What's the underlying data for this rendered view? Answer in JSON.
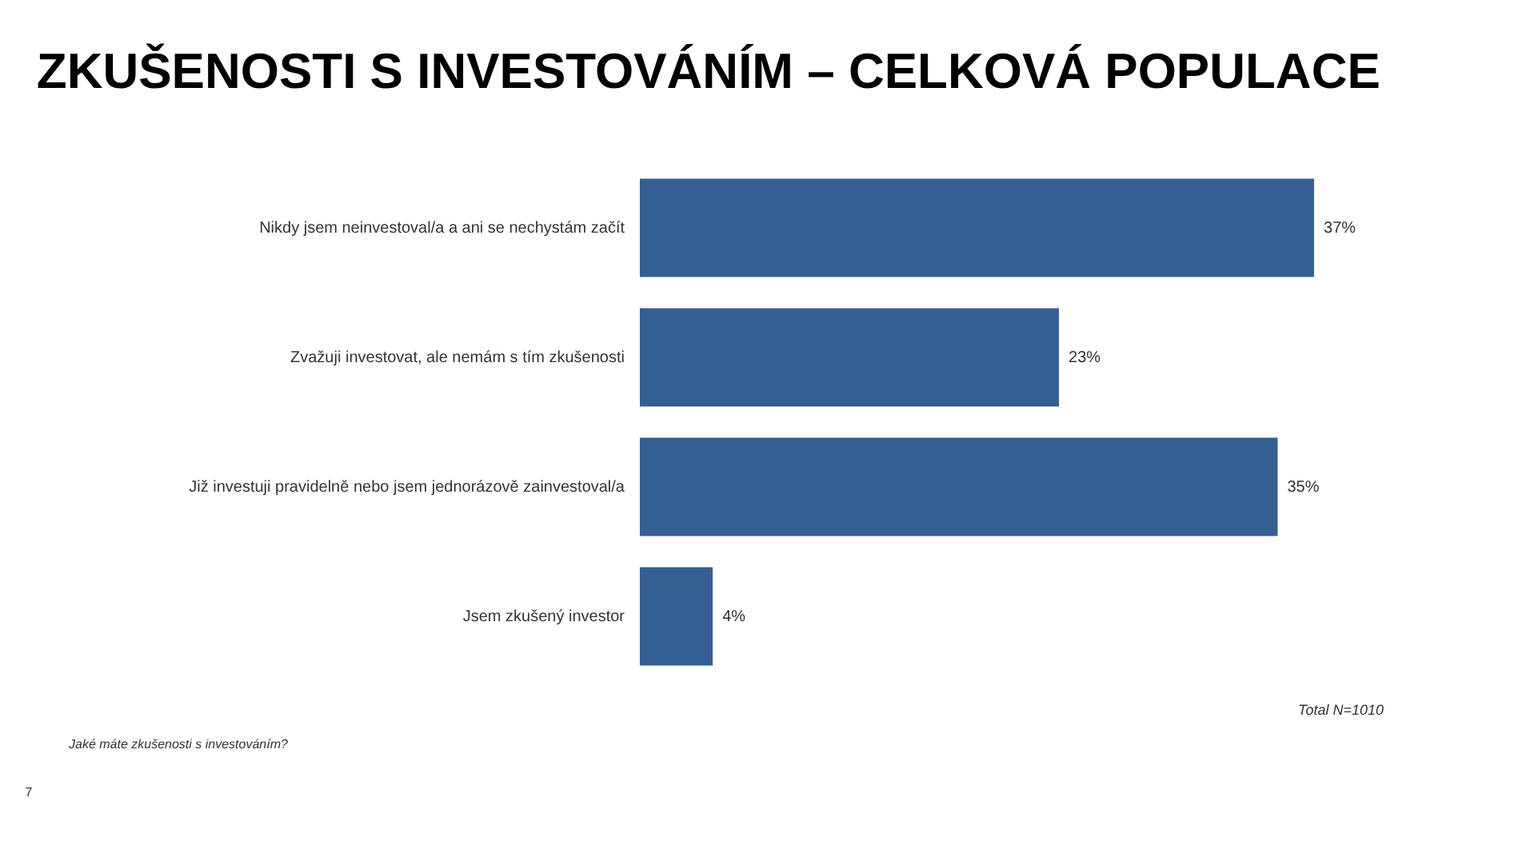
{
  "chart_data": {
    "type": "bar",
    "orientation": "horizontal",
    "title": "ZKUŠENOSTI S INVESTOVÁNÍM – CELKOVÁ POPULACE",
    "categories": [
      "Nikdy jsem neinvestoval/a a ani se nechystám začít",
      "Zvažuji investovat, ale nemám s tím zkušenosti",
      "Již investuji pravidelně nebo jsem jednorázově zainvestoval/a",
      "Jsem zkušený investor"
    ],
    "values": [
      37,
      23,
      35,
      4
    ],
    "color": "#365f91",
    "data_labels": true,
    "value_labels": [
      "37%",
      "23%",
      "35%",
      "4%"
    ],
    "grid": false,
    "annotations": [
      "Total N=1010",
      "Jaké máte zkušenosti s investováním?",
      "7"
    ]
  }
}
